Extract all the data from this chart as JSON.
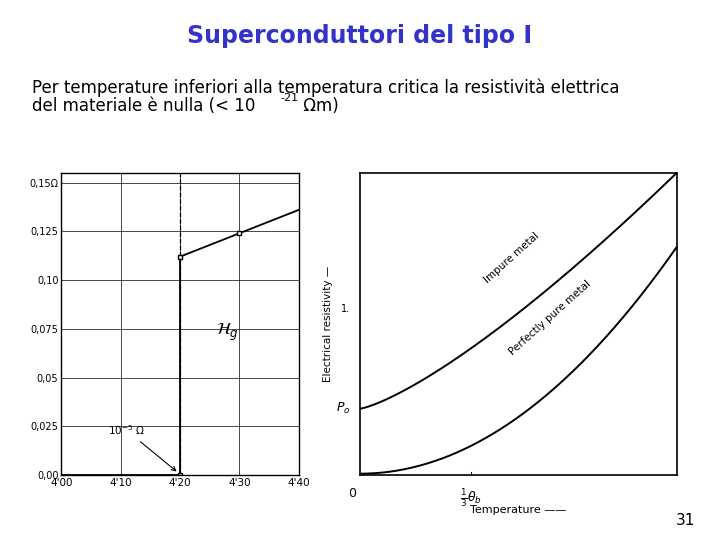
{
  "title": "Superconduttori del tipo I",
  "title_color": "#3333CC",
  "title_fontsize": 17,
  "body_fontsize": 12,
  "background_color": "#ffffff",
  "page_number": "31",
  "left_chart": {
    "xlabel_ticks": [
      "4'00",
      "4'10",
      "4'20",
      "4'30",
      "4'40"
    ],
    "ylabel_ticks": [
      "0,00",
      "0,025",
      "0,05",
      "0,075",
      "0,10",
      "0,125",
      "0,15Ω"
    ],
    "ylabel_values": [
      0.0,
      0.025,
      0.05,
      0.075,
      0.1,
      0.125,
      0.15
    ],
    "xlabel_values": [
      400,
      410,
      420,
      430,
      440
    ]
  },
  "right_chart": {
    "xlabel": "Temperature ——",
    "ylabel": "Electrical resistivity —",
    "label_impure": "Impure metal",
    "label_pure": "Perfectly pure metal",
    "label_p0": "$P_o$",
    "tc_label": "$\\frac{1}{3}\\theta_b$"
  }
}
